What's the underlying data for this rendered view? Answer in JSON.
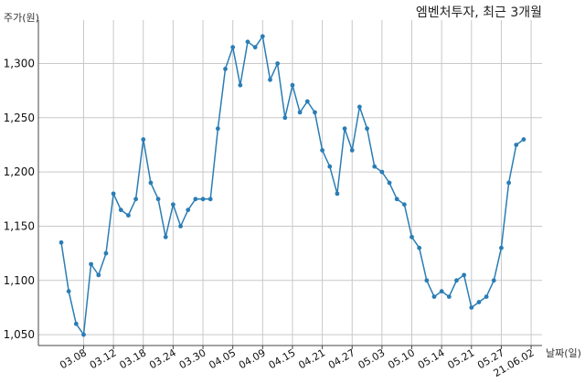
{
  "chart_data": {
    "type": "line",
    "title": "엠벤처투자, 최근 3개월",
    "ylabel": "주가(원)",
    "xlabel": "날짜(일)",
    "ylim": [
      1040,
      1340
    ],
    "yticks": [
      1050,
      1100,
      1150,
      1200,
      1250,
      1300
    ],
    "ytick_labels": [
      "1,050",
      "1,100",
      "1,150",
      "1,200",
      "1,250",
      "1,300"
    ],
    "xtick_labels": [
      "03.08",
      "03.12",
      "03.18",
      "03.24",
      "03.30",
      "04.05",
      "04.09",
      "04.15",
      "04.21",
      "04.27",
      "05.03",
      "05.10",
      "05.14",
      "05.21",
      "05.27",
      "21.06.02"
    ],
    "xtick_index": [
      3,
      7,
      11,
      15,
      19,
      23,
      27,
      31,
      35,
      39,
      43,
      47,
      51,
      55,
      59,
      63
    ],
    "grid": true,
    "color": "#2a7db5",
    "series": [
      {
        "values": [
          1135,
          1090,
          1060,
          1050,
          1115,
          1105,
          1125,
          1180,
          1165,
          1160,
          1175,
          1230,
          1190,
          1175,
          1140,
          1170,
          1150,
          1165,
          1175,
          1175,
          1175,
          1240,
          1295,
          1315,
          1280,
          1320,
          1315,
          1325,
          1285,
          1300,
          1250,
          1280,
          1255,
          1265,
          1255,
          1220,
          1205,
          1180,
          1240,
          1220,
          1260,
          1240,
          1205,
          1200,
          1190,
          1175,
          1170,
          1140,
          1130,
          1100,
          1085,
          1090,
          1085,
          1100,
          1105,
          1075,
          1080,
          1085,
          1100,
          1130,
          1190,
          1225,
          1230
        ]
      }
    ]
  }
}
